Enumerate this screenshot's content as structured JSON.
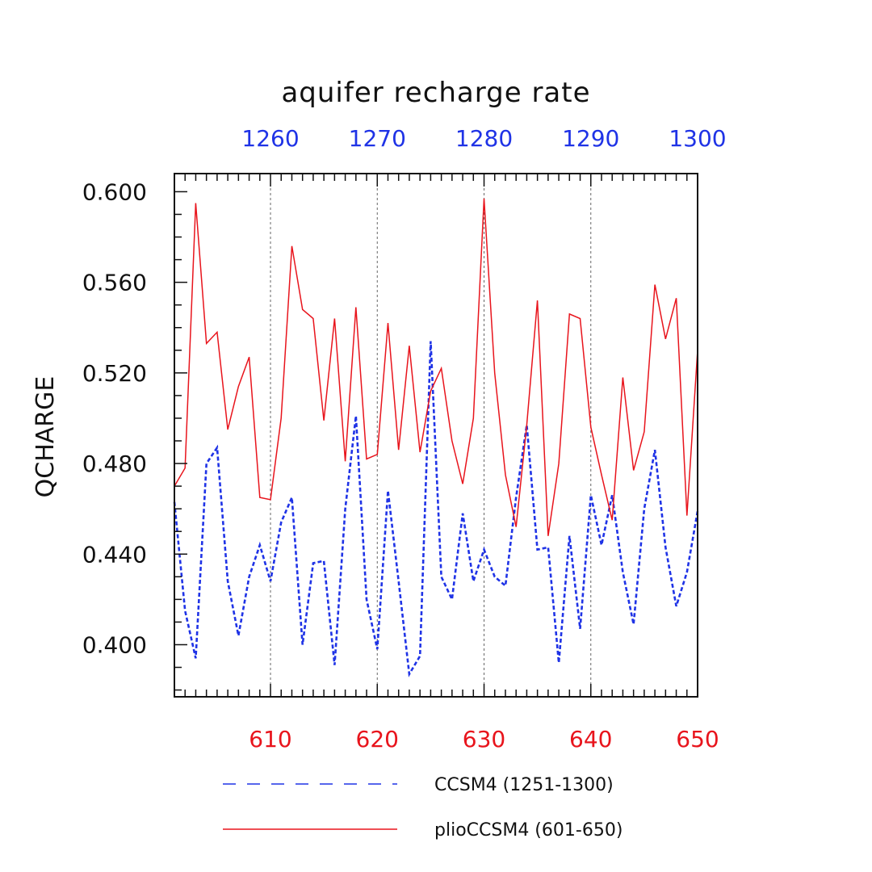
{
  "chart_data": {
    "type": "line",
    "title": "aquifer recharge rate",
    "ylabel": "QCHARGE",
    "xlabel": "",
    "ylim": [
      0.377,
      0.608
    ],
    "yticks": [
      0.4,
      0.44,
      0.48,
      0.52,
      0.56,
      0.6
    ],
    "ytick_labels": [
      "0.400",
      "0.440",
      "0.480",
      "0.520",
      "0.560",
      "0.600"
    ],
    "x_bottom": {
      "range": [
        601,
        650
      ],
      "ticks": [
        610,
        620,
        630,
        640,
        650
      ],
      "tick_labels": [
        "610",
        "620",
        "630",
        "640",
        "650"
      ],
      "color": "#e8141c"
    },
    "x_top": {
      "range": [
        1251,
        1300
      ],
      "ticks": [
        1260,
        1270,
        1280,
        1290,
        1300
      ],
      "tick_labels": [
        "1260",
        "1270",
        "1280",
        "1290",
        "1300"
      ],
      "color": "#1f33e6"
    },
    "grid": "vertical dashed at major ticks",
    "legend_placement": "below",
    "series": [
      {
        "name": "CCSM4 (1251-1300)",
        "color": "#1f33e6",
        "style": "dashed",
        "axis": "top",
        "x": [
          1251,
          1252,
          1253,
          1254,
          1255,
          1256,
          1257,
          1258,
          1259,
          1260,
          1261,
          1262,
          1263,
          1264,
          1265,
          1266,
          1267,
          1268,
          1269,
          1270,
          1271,
          1272,
          1273,
          1274,
          1275,
          1276,
          1277,
          1278,
          1279,
          1280,
          1281,
          1282,
          1283,
          1284,
          1285,
          1286,
          1287,
          1288,
          1289,
          1290,
          1291,
          1292,
          1293,
          1294,
          1295,
          1296,
          1297,
          1298,
          1299,
          1300
        ],
        "values": [
          0.463,
          0.415,
          0.394,
          0.48,
          0.487,
          0.428,
          0.404,
          0.43,
          0.444,
          0.428,
          0.454,
          0.465,
          0.4,
          0.436,
          0.437,
          0.391,
          0.46,
          0.501,
          0.42,
          0.398,
          0.468,
          0.428,
          0.387,
          0.395,
          0.534,
          0.43,
          0.42,
          0.458,
          0.428,
          0.442,
          0.43,
          0.426,
          0.465,
          0.497,
          0.442,
          0.443,
          0.392,
          0.448,
          0.407,
          0.466,
          0.444,
          0.466,
          0.432,
          0.409,
          0.46,
          0.486,
          0.443,
          0.417,
          0.432,
          0.459
        ]
      },
      {
        "name": "plioCCSM4 (601-650)",
        "color": "#e8141c",
        "style": "solid",
        "axis": "bottom",
        "x": [
          601,
          602,
          603,
          604,
          605,
          606,
          607,
          608,
          609,
          610,
          611,
          612,
          613,
          614,
          615,
          616,
          617,
          618,
          619,
          620,
          621,
          622,
          623,
          624,
          625,
          626,
          627,
          628,
          629,
          630,
          631,
          632,
          633,
          634,
          635,
          636,
          637,
          638,
          639,
          640,
          641,
          642,
          643,
          644,
          645,
          646,
          647,
          648,
          649,
          650
        ],
        "values": [
          0.47,
          0.478,
          0.595,
          0.533,
          0.538,
          0.495,
          0.514,
          0.527,
          0.465,
          0.464,
          0.5,
          0.576,
          0.548,
          0.544,
          0.499,
          0.544,
          0.481,
          0.549,
          0.482,
          0.484,
          0.542,
          0.486,
          0.532,
          0.485,
          0.512,
          0.522,
          0.49,
          0.471,
          0.5,
          0.597,
          0.52,
          0.475,
          0.452,
          0.497,
          0.552,
          0.448,
          0.48,
          0.546,
          0.544,
          0.496,
          0.475,
          0.455,
          0.518,
          0.477,
          0.494,
          0.559,
          0.535,
          0.553,
          0.457,
          0.53
        ]
      }
    ]
  }
}
